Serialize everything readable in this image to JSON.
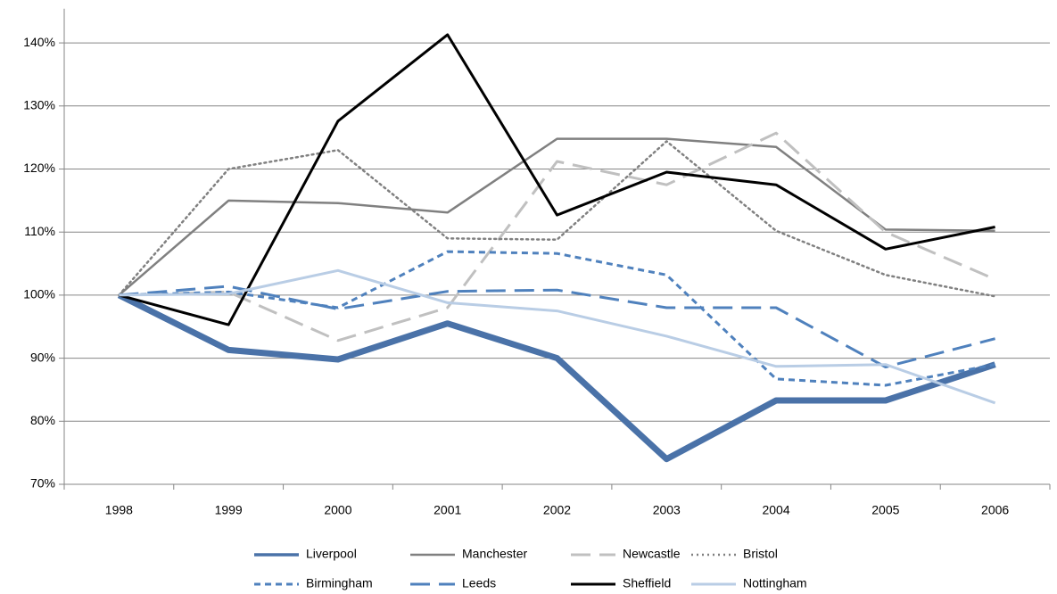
{
  "chart_data": {
    "type": "line",
    "categories": [
      "1998",
      "1999",
      "2000",
      "2001",
      "2002",
      "2003",
      "2004",
      "2005",
      "2006"
    ],
    "ylim": [
      70,
      145
    ],
    "yticks": [
      {
        "value": 70,
        "label": "70%"
      },
      {
        "value": 80,
        "label": "80%"
      },
      {
        "value": 90,
        "label": "90%"
      },
      {
        "value": 100,
        "label": "100%"
      },
      {
        "value": 110,
        "label": "110%"
      },
      {
        "value": 120,
        "label": "120%"
      },
      {
        "value": 130,
        "label": "130%"
      },
      {
        "value": 140,
        "label": "140%"
      }
    ],
    "grid": true,
    "legend": "bottom",
    "series": [
      {
        "name": "Liverpool",
        "color": "#4a72a8",
        "width": 7,
        "dash": "solid",
        "values": [
          100,
          91.3,
          89.8,
          95.5,
          90,
          74,
          83.3,
          83.3,
          89
        ]
      },
      {
        "name": "Manchester",
        "color": "#808080",
        "width": 2.5,
        "dash": "solid",
        "values": [
          100,
          115,
          114.6,
          113.1,
          124.8,
          124.8,
          123.5,
          110.4,
          110.2
        ]
      },
      {
        "name": "Newcastle",
        "color": "#c0c0c0",
        "width": 3,
        "dash": "longdash",
        "values": [
          100,
          100.5,
          92.8,
          98,
          121.2,
          117.5,
          125.7,
          110,
          102.5
        ]
      },
      {
        "name": "Bristol",
        "color": "#808080",
        "width": 2.5,
        "dash": "dot",
        "values": [
          100,
          120,
          123,
          109,
          108.8,
          124.4,
          110.2,
          103.2,
          99.8
        ]
      },
      {
        "name": "Birmingham",
        "color": "#4f81bd",
        "width": 3,
        "dash": "dash",
        "values": [
          100,
          100.5,
          98,
          106.9,
          106.6,
          103.2,
          86.7,
          85.7,
          89
        ]
      },
      {
        "name": "Leeds",
        "color": "#4f81bd",
        "width": 3,
        "dash": "longdash",
        "values": [
          100,
          101.4,
          97.8,
          100.6,
          100.8,
          98,
          98,
          88.6,
          93.1
        ]
      },
      {
        "name": "Sheffield",
        "color": "#000000",
        "width": 3,
        "dash": "solid",
        "values": [
          100,
          95.3,
          127.6,
          141.3,
          112.7,
          119.5,
          117.5,
          107.3,
          110.8
        ]
      },
      {
        "name": "Nottingham",
        "color": "#b9cde5",
        "width": 3,
        "dash": "solid",
        "values": [
          100,
          100.2,
          103.9,
          98.8,
          97.5,
          93.5,
          88.7,
          89,
          82.9
        ]
      }
    ]
  }
}
